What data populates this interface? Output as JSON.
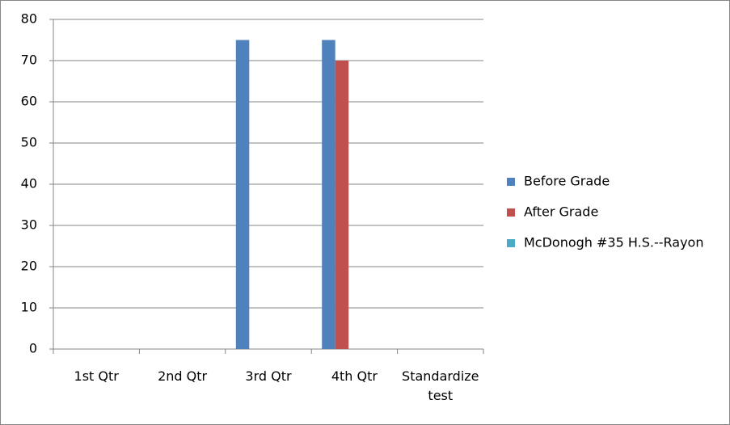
{
  "chart_data": {
    "type": "bar",
    "categories": [
      "1st Qtr",
      "2nd Qtr",
      "3rd Qtr",
      "4th Qtr",
      "Standardize test"
    ],
    "series": [
      {
        "name": "Before Grade",
        "color": "#4f81bd",
        "values": [
          null,
          null,
          75,
          75,
          null
        ]
      },
      {
        "name": "After Grade",
        "color": "#c0504d",
        "values": [
          null,
          null,
          null,
          70,
          null
        ]
      },
      {
        "name": "McDonogh #35 H.S.--Rayon",
        "color": "#4bacc6",
        "values": [
          null,
          null,
          null,
          null,
          null
        ]
      }
    ],
    "ylim": [
      0,
      80
    ],
    "yticks": [
      0,
      10,
      20,
      30,
      40,
      50,
      60,
      70,
      80
    ],
    "grid": true,
    "legend": "right"
  }
}
